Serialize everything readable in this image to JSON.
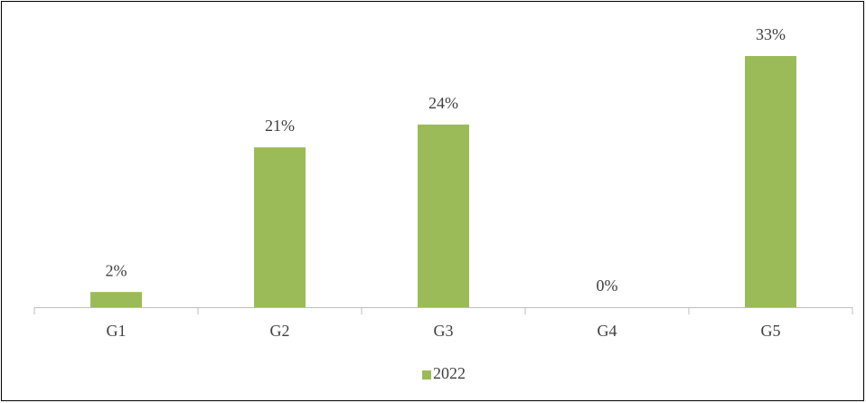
{
  "chart_data": {
    "type": "bar",
    "categories": [
      "G1",
      "G2",
      "G3",
      "G4",
      "G5"
    ],
    "series": [
      {
        "name": "2022",
        "color": "#9bbb59",
        "values": [
          2,
          21,
          24,
          0,
          33
        ],
        "value_labels": [
          "2%",
          "21%",
          "24%",
          "0%",
          "33%"
        ]
      }
    ],
    "legend": "bottom"
  }
}
